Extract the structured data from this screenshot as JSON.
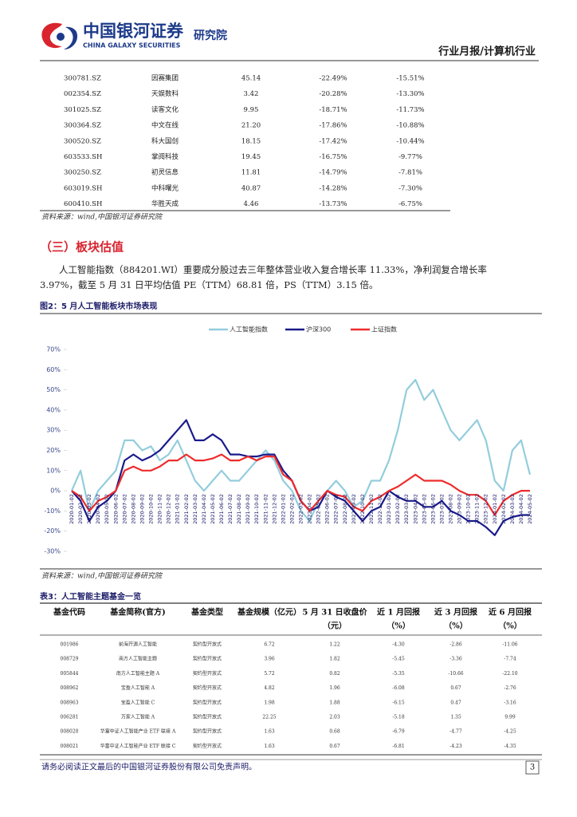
{
  "header": {
    "brand": "中国银河证券",
    "brand_en": "CHINA GALAXY SECURITIES",
    "institute": "研究院",
    "report_type": "行业月报/计算机行业"
  },
  "table1": {
    "rows": [
      [
        "300781.SZ",
        "因赛集团",
        "45.14",
        "-22.49%",
        "-15.51%"
      ],
      [
        "002354.SZ",
        "天娱数科",
        "3.42",
        "-20.28%",
        "-13.30%"
      ],
      [
        "301025.SZ",
        "读客文化",
        "9.95",
        "-18.71%",
        "-11.73%"
      ],
      [
        "300364.SZ",
        "中文在线",
        "21.20",
        "-17.86%",
        "-10.88%"
      ],
      [
        "300520.SZ",
        "科大国创",
        "18.15",
        "-17.42%",
        "-10.44%"
      ],
      [
        "603533.SH",
        "掌阅科技",
        "19.45",
        "-16.75%",
        "-9.77%"
      ],
      [
        "300250.SZ",
        "初灵信息",
        "11.81",
        "-14.79%",
        "-7.81%"
      ],
      [
        "603019.SH",
        "中科曙光",
        "40.87",
        "-14.28%",
        "-7.30%"
      ],
      [
        "600410.SH",
        "华胜天成",
        "4.46",
        "-13.73%",
        "-6.75%"
      ]
    ],
    "source": "资料来源：wind,中国银河证券研究院"
  },
  "section": {
    "heading": "（三）板块估值",
    "paragraph": [
      "人工智能指数（884201.WI）重要成分股过去三年整体营业收入复合增长率 11.33%，净利润复合增长率",
      "3.97%，截至 5 月 31 日平均估值 PE（TTM）68.81 倍，PS（TTM）3.15 倍。"
    ]
  },
  "figure": {
    "caption": "图2：5 月人工智能板块市场表现",
    "source": "资料来源：wind,中国银河证券研究院"
  },
  "chart_data": {
    "type": "line",
    "categories": [
      "2020-01-02",
      "2020-02-02",
      "2020-03-02",
      "2020-04-02",
      "2020-05-02",
      "2020-06-02",
      "2020-07-02",
      "2020-08-02",
      "2020-09-02",
      "2020-10-02",
      "2020-11-02",
      "2020-12-02",
      "2021-01-02",
      "2021-02-02",
      "2021-03-02",
      "2021-04-02",
      "2021-05-02",
      "2021-06-02",
      "2021-07-02",
      "2021-08-02",
      "2021-09-02",
      "2021-10-02",
      "2021-11-02",
      "2021-12-02",
      "2022-01-02",
      "2022-02-02",
      "2022-03-02",
      "2022-04-02",
      "2022-05-02",
      "2022-06-02",
      "2022-07-02",
      "2022-08-02",
      "2022-09-02",
      "2022-10-02",
      "2022-11-02",
      "2022-12-02",
      "2023-01-02",
      "2023-02-02",
      "2023-03-02",
      "2023-04-02",
      "2023-05-02",
      "2023-06-02",
      "2023-07-02",
      "2023-08-02",
      "2023-09-02",
      "2023-10-02",
      "2023-11-02",
      "2023-12-02",
      "2024-01-02",
      "2024-02-02",
      "2024-03-02",
      "2024-04-02",
      "2024-05-02"
    ],
    "series": [
      {
        "name": "人工智能指数",
        "color": "#93cddd",
        "values": [
          0,
          10,
          -10,
          0,
          5,
          10,
          25,
          25,
          20,
          22,
          15,
          18,
          25,
          15,
          5,
          0,
          5,
          10,
          5,
          5,
          10,
          15,
          20,
          15,
          5,
          0,
          -10,
          -15,
          -5,
          0,
          5,
          0,
          -8,
          -5,
          5,
          5,
          15,
          30,
          50,
          55,
          45,
          50,
          40,
          30,
          25,
          30,
          35,
          25,
          5,
          0,
          20,
          25,
          8
        ]
      },
      {
        "name": "沪深300",
        "color": "#1a1a8c",
        "values": [
          0,
          -5,
          -15,
          -8,
          -5,
          0,
          15,
          18,
          15,
          17,
          20,
          25,
          30,
          35,
          25,
          25,
          28,
          25,
          18,
          18,
          17,
          17,
          18,
          18,
          10,
          5,
          -5,
          -10,
          -8,
          0,
          -3,
          -5,
          -10,
          -15,
          -10,
          -8,
          0,
          -3,
          -5,
          -5,
          -8,
          -8,
          -5,
          -10,
          -12,
          -15,
          -15,
          -18,
          -22,
          -15,
          -13,
          -12,
          -12
        ]
      },
      {
        "name": "上证指数",
        "color": "#ee2b2b",
        "values": [
          0,
          -3,
          -10,
          -5,
          -3,
          0,
          10,
          12,
          10,
          10,
          12,
          15,
          15,
          18,
          15,
          15,
          16,
          18,
          15,
          15,
          17,
          15,
          17,
          17,
          8,
          5,
          -5,
          -10,
          -5,
          0,
          -2,
          -3,
          -8,
          -10,
          -5,
          -3,
          0,
          2,
          5,
          8,
          5,
          5,
          5,
          3,
          0,
          -2,
          -2,
          -5,
          -12,
          -5,
          -2,
          0,
          0
        ]
      }
    ],
    "ylim": [
      -30,
      70
    ],
    "yticks": [
      {
        "value": -30,
        "label": "-30%"
      },
      {
        "value": -20,
        "label": "-20%"
      },
      {
        "value": -10,
        "label": "-10%"
      },
      {
        "value": 0,
        "label": "0%"
      },
      {
        "value": 10,
        "label": "10%"
      },
      {
        "value": 20,
        "label": "20%"
      },
      {
        "value": 30,
        "label": "30%"
      },
      {
        "value": 40,
        "label": "40%"
      },
      {
        "value": 50,
        "label": "50%"
      },
      {
        "value": 60,
        "label": "60%"
      },
      {
        "value": 70,
        "label": "70%"
      }
    ],
    "legend": "top"
  },
  "table3": {
    "caption": "表3：人工智能主题基金一览",
    "headers": [
      [
        "基金代码"
      ],
      [
        "基金简称(官方)"
      ],
      [
        "基金类型"
      ],
      [
        "基金规模（亿元）"
      ],
      [
        "5 月 31 日收盘价",
        "（元）"
      ],
      [
        "近 1 月回报",
        "（%）"
      ],
      [
        "近 3 月回报",
        "（%）"
      ],
      [
        "近 6 月回报",
        "（%）"
      ]
    ],
    "rows": [
      [
        "001986",
        "前海开源人工智能",
        "契约型开放式",
        "6.72",
        "1.22",
        "-4.30",
        "-2.86",
        "-11.06"
      ],
      [
        "008729",
        "南方人工智能主题",
        "契约型开放式",
        "3.96",
        "1.82",
        "-5.45",
        "-3.36",
        "-7.74"
      ],
      [
        "005844",
        "南方人工智能主题 A",
        "契约型开放式",
        "5.72",
        "0.82",
        "-5.35",
        "-10.66",
        "-22.10"
      ],
      [
        "008962",
        "宝盈人工智能 A",
        "契约型开放式",
        "4.82",
        "1.96",
        "-6.08",
        "0.67",
        "-2.76"
      ],
      [
        "008963",
        "宝盈人工智能 C",
        "契约型开放式",
        "1.98",
        "1.88",
        "-6.15",
        "0.47",
        "-3.16"
      ],
      [
        "006281",
        "万家人工智能 A",
        "契约型开放式",
        "22.25",
        "2.03",
        "-5.18",
        "1.35",
        "9.99"
      ],
      [
        "008020",
        "华富中证人工智能产业 ETF 联接 A",
        "契约型开放式",
        "1.63",
        "0.68",
        "-6.79",
        "-4.77",
        "-4.25"
      ],
      [
        "008021",
        "华富中证人工智能产业 ETF 联接 C",
        "契约型开放式",
        "1.63",
        "0.67",
        "-6.81",
        "-4.23",
        "-4.35"
      ]
    ]
  },
  "footer": {
    "disclaimer": "请务必阅读正文最后的中国银河证券股份有限公司免责声明。",
    "page": "3"
  }
}
